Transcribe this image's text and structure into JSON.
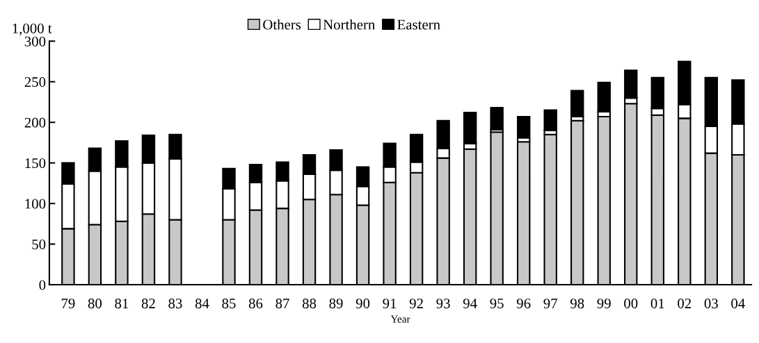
{
  "chart_data": {
    "type": "bar",
    "stacked": true,
    "xlabel": "Year",
    "ylabel": "1,000 t",
    "categories": [
      "79",
      "80",
      "81",
      "82",
      "83",
      "84",
      "85",
      "86",
      "87",
      "88",
      "89",
      "90",
      "91",
      "92",
      "93",
      "94",
      "95",
      "96",
      "97",
      "98",
      "99",
      "00",
      "01",
      "02",
      "03",
      "04"
    ],
    "series": [
      {
        "name": "Others",
        "color": "#c8c8c8",
        "values": [
          69,
          74,
          78,
          87,
          80,
          null,
          80,
          92,
          94,
          105,
          111,
          98,
          126,
          138,
          156,
          167,
          188,
          176,
          185,
          202,
          207,
          223,
          209,
          205,
          162,
          160
        ]
      },
      {
        "name": "Northern",
        "color": "#ffffff",
        "values": [
          55,
          66,
          67,
          63,
          75,
          null,
          38,
          34,
          34,
          31,
          30,
          23,
          19,
          13,
          12,
          7,
          3,
          5,
          5,
          5,
          6,
          7,
          8,
          17,
          33,
          38
        ]
      },
      {
        "name": "Eastern",
        "color": "#000000",
        "values": [
          26,
          28,
          32,
          34,
          30,
          null,
          25,
          22,
          23,
          24,
          25,
          24,
          29,
          34,
          34,
          38,
          27,
          26,
          25,
          32,
          36,
          34,
          38,
          53,
          60,
          54
        ]
      }
    ],
    "ylim": [
      0,
      300
    ],
    "yticks": [
      0,
      50,
      100,
      150,
      200,
      250,
      300
    ],
    "grid": false,
    "legend": "top"
  }
}
